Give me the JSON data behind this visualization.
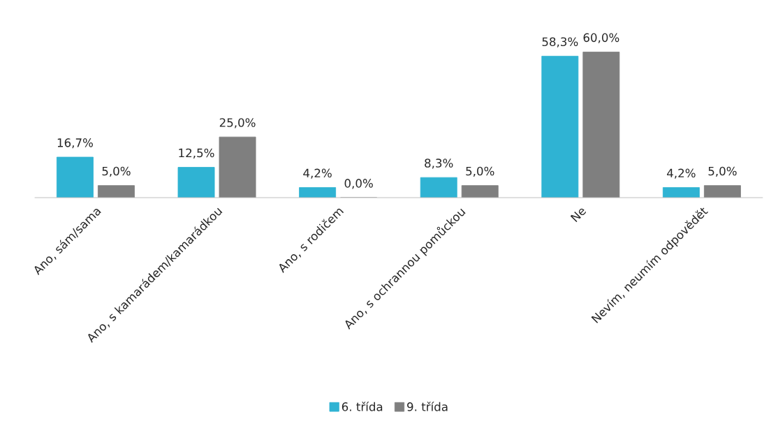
{
  "chart_data": {
    "type": "bar",
    "categories": [
      "Ano, sám/sama",
      "Ano, s kamarádem/kamarádkou",
      "Ano, s rodičem",
      "Ano, s ochrannou pomůckou",
      "Ne",
      "Nevím, neumím odpovědět"
    ],
    "series": [
      {
        "name": "6. třída",
        "color": "#2fb3d3",
        "values": [
          16.7,
          12.5,
          4.2,
          8.3,
          58.3,
          4.2
        ],
        "value_labels": [
          "16,7%",
          "12,5%",
          "4,2%",
          "8,3%",
          "58,3%",
          "4,2%"
        ]
      },
      {
        "name": "9. třída",
        "color": "#7f7f7f",
        "values": [
          5.0,
          25.0,
          0.0,
          5.0,
          60.0,
          5.0
        ],
        "value_labels": [
          "5,0%",
          "25,0%",
          "0,0%",
          "5,0%",
          "60,0%",
          "5,0%"
        ]
      }
    ],
    "legend": "bottom"
  }
}
